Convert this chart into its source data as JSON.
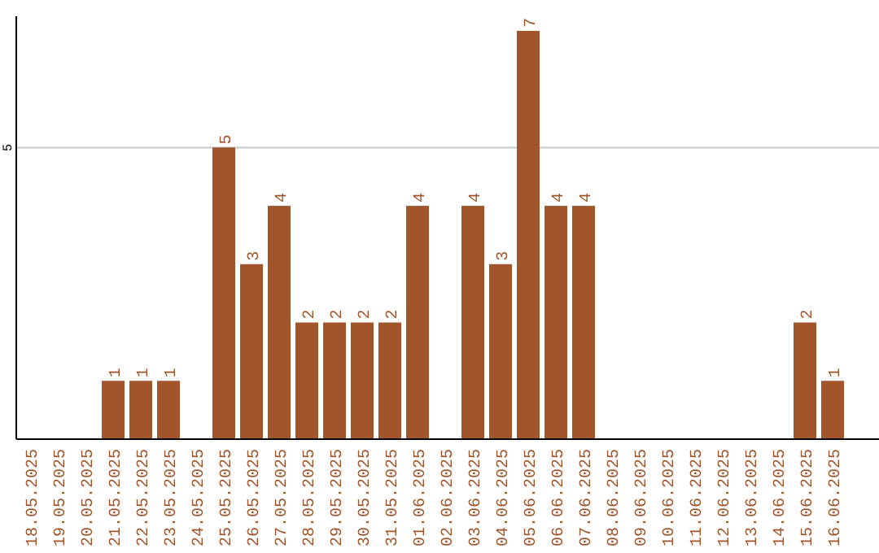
{
  "chart_data": {
    "type": "bar",
    "categories": [
      "18.05.2025",
      "19.05.2025",
      "20.05.2025",
      "21.05.2025",
      "22.05.2025",
      "23.05.2025",
      "24.05.2025",
      "25.05.2025",
      "26.05.2025",
      "27.05.2025",
      "28.05.2025",
      "29.05.2025",
      "30.05.2025",
      "31.05.2025",
      "01.06.2025",
      "02.06.2025",
      "03.06.2025",
      "04.06.2025",
      "05.06.2025",
      "06.06.2025",
      "07.06.2025",
      "08.06.2025",
      "09.06.2025",
      "10.06.2025",
      "11.06.2025",
      "12.06.2025",
      "13.06.2025",
      "14.06.2025",
      "15.06.2025",
      "16.06.2025"
    ],
    "values": [
      0,
      0,
      0,
      1,
      1,
      1,
      0,
      5,
      3,
      4,
      2,
      2,
      2,
      2,
      4,
      0,
      4,
      3,
      7,
      4,
      4,
      0,
      0,
      0,
      0,
      0,
      0,
      0,
      2,
      1
    ],
    "value_labels": [
      null,
      null,
      null,
      "1",
      "1",
      "1",
      null,
      "5",
      "3",
      "4",
      "2",
      "2",
      "2",
      "2",
      "4",
      null,
      "4",
      "3",
      "7",
      "4",
      "4",
      null,
      null,
      null,
      null,
      null,
      null,
      null,
      "2",
      "1"
    ],
    "color": "#a0562a",
    "ylim": [
      0,
      7.25
    ],
    "yticks": [
      5
    ],
    "grid": "y"
  }
}
